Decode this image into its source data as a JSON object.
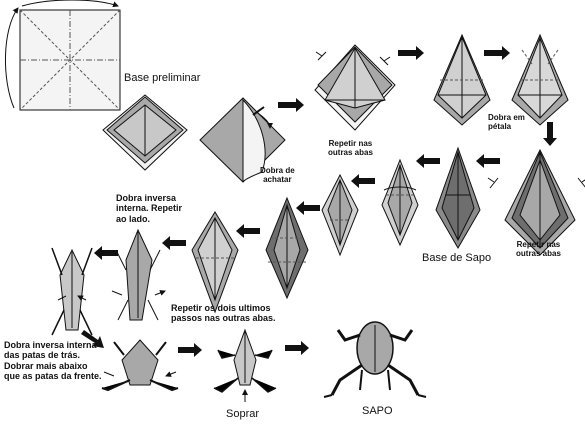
{
  "labels": {
    "base_preliminar": "Base preliminar",
    "repetir_nas_outras_abas_1": "Repetir nas\noutras abas",
    "dobra_em_petala": "Dobra em\npétala",
    "dobra_de_achatar": "Dobra de\nachatar",
    "repetir_nas_outras_abas_2": "Repetir nas\noutras abas",
    "base_de_sapo": "Base de Sapo",
    "dobra_inversa_interna_repetir": "Dobra inversa\ninterna. Repetir\nao lado.",
    "repetir_dois_ultimos": "Repetir os dois ultimos\npassos nas outras abas.",
    "dobra_inversa_patas_tras": "Dobra inversa interna\ndas patas de trás.\nDobrar mais abaixo\nque as patas da frente.",
    "soprar": "Soprar",
    "sapo": "SAPO"
  },
  "colors": {
    "paper_gray": "#a8a8a8",
    "paper_dark": "#6e6e6e",
    "paper_light": "#d8d8d8",
    "ink": "#111111"
  }
}
